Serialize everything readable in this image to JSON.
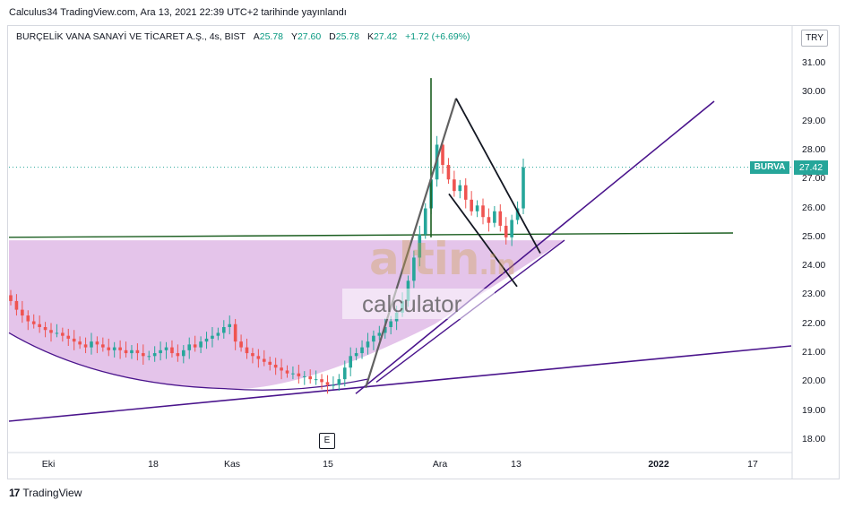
{
  "header": {
    "published": "Calculus34 TradingView.com, Ara 13, 2021 22:39 UTC+2 tarihinde yayınlandı",
    "symbol": "BURÇELİK VANA SANAYİ VE TİCARET A.Ş., 4s, BIST",
    "o_label": "A",
    "o_value": "25.78",
    "h_label": "Y",
    "h_value": "27.60",
    "l_label": "D",
    "l_value": "25.78",
    "c_label": "K",
    "c_value": "27.42",
    "change": "+1.72 (+6.69%)",
    "currency": "TRY"
  },
  "price_tag": {
    "symbol": "BURVA",
    "value": "27.42"
  },
  "event_marker": "E",
  "watermark": {
    "word": "altin",
    "suffix": ".in",
    "sub": "calculator"
  },
  "footer": {
    "brand": "TradingView"
  },
  "colors": {
    "up": "#26a69a",
    "down": "#ef5350",
    "purple": "#4a148c",
    "green_line": "#1b5e20",
    "bowl_fill": "#ce93d8"
  },
  "chart_data": {
    "type": "candlestick",
    "title": "BURÇELİK VANA SANAYİ VE TİCARET A.Ş., 4s, BIST",
    "xlabel": "",
    "ylabel": "",
    "y_ticks": [
      "31.00",
      "30.00",
      "29.00",
      "28.00",
      "27.00",
      "26.00",
      "25.00",
      "24.00",
      "23.00",
      "22.00",
      "21.00",
      "20.00",
      "19.00",
      "18.00"
    ],
    "x_ticks": [
      {
        "label": "Eki",
        "bold": false
      },
      {
        "label": "18",
        "bold": false
      },
      {
        "label": "Kas",
        "bold": false
      },
      {
        "label": "15",
        "bold": false
      },
      {
        "label": "Ara",
        "bold": false
      },
      {
        "label": "13",
        "bold": false
      },
      {
        "label": "2022",
        "bold": true
      },
      {
        "label": "17",
        "bold": false
      }
    ],
    "ylim": [
      17.6,
      31.6
    ],
    "last_price": 27.42,
    "series_close": [
      22.8,
      22.5,
      22.3,
      22.1,
      22.0,
      21.9,
      21.8,
      21.7,
      21.7,
      21.6,
      21.5,
      21.4,
      21.3,
      21.2,
      21.4,
      21.3,
      21.2,
      21.1,
      21.2,
      21.1,
      21.0,
      21.1,
      21.0,
      20.9,
      20.9,
      21.0,
      21.1,
      21.2,
      21.0,
      20.9,
      21.1,
      21.3,
      21.2,
      21.4,
      21.5,
      21.6,
      21.7,
      21.9,
      22.0,
      21.4,
      21.2,
      21.0,
      20.9,
      20.8,
      20.7,
      20.6,
      20.5,
      20.4,
      20.3,
      20.3,
      20.2,
      20.2,
      20.1,
      20.1,
      20.0,
      19.9,
      19.9,
      20.1,
      20.5,
      20.9,
      21.0,
      21.2,
      21.4,
      21.6,
      21.7,
      21.9,
      22.1,
      22.4,
      22.8,
      23.5,
      24.3,
      25.1,
      26.0,
      27.0,
      28.2,
      27.5,
      27.0,
      26.6,
      26.8,
      26.3,
      25.9,
      26.1,
      25.7,
      25.5,
      25.9,
      25.4,
      25.0,
      25.6,
      26.0,
      27.42
    ],
    "annotations": {
      "horizontal_resistance": 25.0,
      "bowl_top": 24.9,
      "bowl_bottom": 19.9,
      "spike_high": 30.5,
      "flag_top": 29.8
    }
  }
}
